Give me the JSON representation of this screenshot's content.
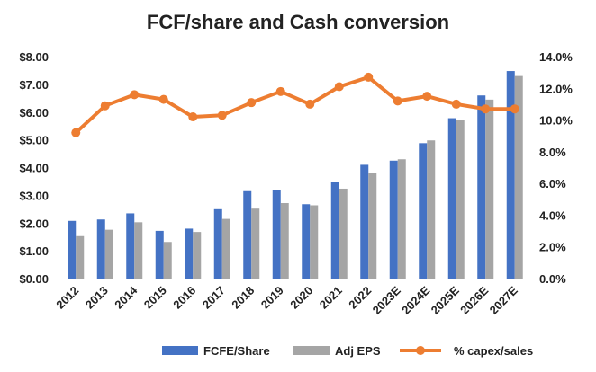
{
  "chart_data": {
    "type": "bar",
    "title": "FCF/share and Cash conversion",
    "categories": [
      "2012",
      "2013",
      "2014",
      "2015",
      "2016",
      "2017",
      "2018",
      "2019",
      "2020",
      "2021",
      "2022",
      "2023E",
      "2024E",
      "2025E",
      "2026E",
      "2027E"
    ],
    "series": [
      {
        "name": "FCFE/Share",
        "type": "bar",
        "axis": "left",
        "color": "#4472C4",
        "values": [
          2.08,
          2.13,
          2.35,
          1.72,
          1.8,
          2.5,
          3.15,
          3.18,
          2.68,
          3.48,
          4.1,
          4.25,
          4.88,
          5.78,
          6.6,
          7.48
        ]
      },
      {
        "name": "Adj EPS",
        "type": "bar",
        "axis": "left",
        "color": "#A5A5A5",
        "values": [
          1.53,
          1.76,
          2.03,
          1.32,
          1.68,
          2.15,
          2.52,
          2.72,
          2.64,
          3.24,
          3.8,
          4.3,
          4.98,
          5.7,
          6.45,
          7.3
        ]
      },
      {
        "name": "% capex/sales",
        "type": "line",
        "axis": "right",
        "color": "#ED7D31",
        "values": [
          9.2,
          10.9,
          11.6,
          11.3,
          10.2,
          10.3,
          11.1,
          11.8,
          11.0,
          12.1,
          12.7,
          11.2,
          11.5,
          11.0,
          10.7,
          10.7
        ]
      }
    ],
    "left_axis": {
      "ticks": [
        "$0.00",
        "$1.00",
        "$2.00",
        "$3.00",
        "$4.00",
        "$5.00",
        "$6.00",
        "$7.00",
        "$8.00"
      ],
      "range": [
        0,
        8
      ]
    },
    "right_axis": {
      "ticks": [
        "0.0%",
        "2.0%",
        "4.0%",
        "6.0%",
        "8.0%",
        "10.0%",
        "12.0%",
        "14.0%"
      ],
      "range": [
        0,
        14
      ]
    },
    "grid": false,
    "legend": "bottom-right"
  }
}
